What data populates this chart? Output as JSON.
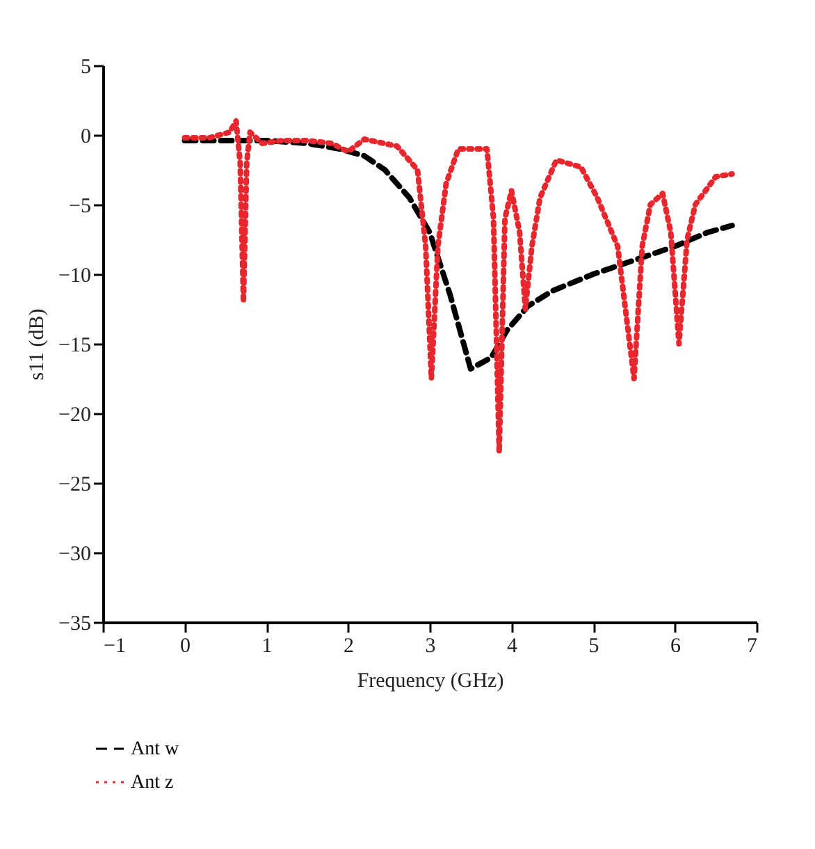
{
  "chart_data": {
    "type": "line",
    "xlabel": "Frequency (GHz)",
    "ylabel": "s11 (dB)",
    "xlim": [
      -1,
      7
    ],
    "ylim": [
      -35,
      5
    ],
    "xticks": [
      -1,
      0,
      1,
      2,
      3,
      4,
      5,
      6,
      7
    ],
    "yticks": [
      -35,
      -30,
      -25,
      -20,
      -15,
      -10,
      -5,
      0,
      5
    ],
    "grid": false,
    "legend": "bottom",
    "marker": "none",
    "series": [
      {
        "name": "Ant w",
        "color": "#000000",
        "line_style": "dashed",
        "x": [
          0,
          0.5,
          1.0,
          1.5,
          1.9,
          2.2,
          2.45,
          2.75,
          3.0,
          3.25,
          3.5,
          3.75,
          3.95,
          4.2,
          4.5,
          5.0,
          5.5,
          6.0,
          6.4,
          6.7
        ],
        "values": [
          -0.4,
          -0.4,
          -0.4,
          -0.6,
          -1.0,
          -1.5,
          -2.5,
          -4.5,
          -7.0,
          -11.5,
          -16.8,
          -16.0,
          -14.0,
          -12.3,
          -11.2,
          -10.0,
          -9.0,
          -8.0,
          -7.0,
          -6.5
        ]
      },
      {
        "name": "Ant z",
        "color": "#e8262d",
        "line_style": "dotted",
        "x": [
          0,
          0.3,
          0.55,
          0.63,
          0.68,
          0.72,
          0.76,
          0.8,
          0.95,
          1.2,
          1.5,
          1.8,
          2.0,
          2.2,
          2.6,
          2.85,
          2.95,
          3.02,
          3.1,
          3.2,
          3.35,
          3.7,
          3.78,
          3.85,
          3.92,
          4.0,
          4.1,
          4.17,
          4.25,
          4.35,
          4.55,
          4.85,
          5.05,
          5.3,
          5.5,
          5.6,
          5.7,
          5.85,
          5.95,
          6.05,
          6.15,
          6.25,
          6.5,
          6.7
        ],
        "values": [
          -0.2,
          -0.2,
          0.2,
          1.0,
          -2.0,
          -12.0,
          -2.0,
          0.2,
          -0.6,
          -0.4,
          -0.4,
          -0.6,
          -1.2,
          -0.3,
          -0.8,
          -2.5,
          -8.0,
          -17.5,
          -8.0,
          -3.5,
          -1.0,
          -1.0,
          -6.0,
          -22.8,
          -6.0,
          -4.0,
          -7.0,
          -12.5,
          -8.0,
          -4.5,
          -1.8,
          -2.3,
          -4.5,
          -8.0,
          -17.5,
          -8.0,
          -5.0,
          -4.2,
          -7.0,
          -15.0,
          -7.5,
          -5.0,
          -3.0,
          -2.8
        ]
      }
    ]
  }
}
